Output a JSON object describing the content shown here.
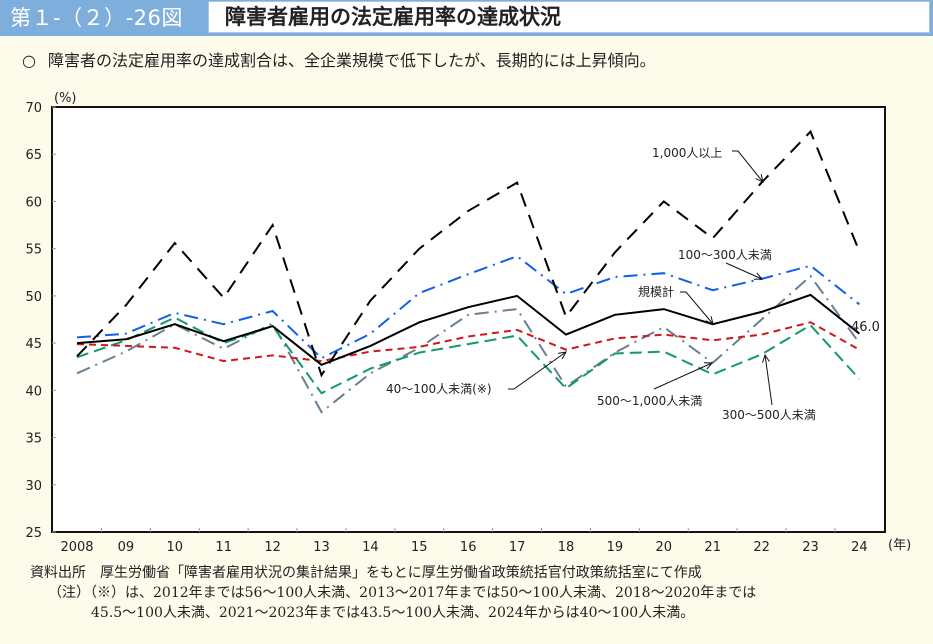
{
  "header": {
    "figure_number": "第１-（２）-26図",
    "title": "障害者雇用の法定雇用率の達成状況"
  },
  "lead": {
    "bullet": "○",
    "text": "障害者の法定雇用率の達成割合は、全企業規模で低下したが、長期的には上昇傾向。"
  },
  "chart_data": {
    "type": "line",
    "title": "障害者雇用の法定雇用率の達成状況",
    "ylabel": "(%)",
    "xlabel": "(年)",
    "ylim": [
      25,
      70
    ],
    "yticks": [
      25,
      30,
      35,
      40,
      45,
      50,
      55,
      60,
      65,
      70
    ],
    "categories": [
      "2008",
      "09",
      "10",
      "11",
      "12",
      "13",
      "14",
      "15",
      "16",
      "17",
      "18",
      "19",
      "20",
      "21",
      "22",
      "23",
      "24"
    ],
    "grid": false,
    "series": [
      {
        "name": "規模計",
        "color": "#000000",
        "style": "solid",
        "values": [
          45.0,
          45.4,
          47.0,
          45.2,
          46.8,
          42.7,
          44.7,
          47.2,
          48.8,
          50.0,
          45.9,
          48.0,
          48.6,
          47.0,
          48.3,
          50.1,
          46.0
        ]
      },
      {
        "name": "1,000人以上",
        "color": "#000000",
        "style": "longdash",
        "values": [
          43.6,
          49.0,
          55.6,
          49.8,
          57.5,
          41.6,
          49.5,
          55.0,
          59.0,
          62.0,
          47.8,
          54.6,
          60.0,
          56.1,
          62.0,
          67.4,
          54.7
        ]
      },
      {
        "name": "100～300人未満",
        "color": "#1060e8",
        "style": "dashdot",
        "values": [
          45.6,
          46.0,
          48.2,
          47.0,
          48.4,
          43.4,
          46.0,
          50.3,
          52.3,
          54.2,
          50.2,
          52.0,
          52.4,
          50.6,
          51.8,
          53.2,
          49.1
        ]
      },
      {
        "name": "40～100人未満(※)",
        "color": "#d01818",
        "style": "shortdash",
        "values": [
          44.9,
          44.7,
          44.5,
          43.1,
          43.7,
          43.1,
          44.1,
          44.6,
          45.7,
          46.4,
          44.3,
          45.5,
          45.9,
          45.3,
          45.9,
          47.2,
          44.3
        ]
      },
      {
        "name": "300～500人未満",
        "color": "#13996a",
        "style": "dash",
        "values": [
          43.5,
          45.3,
          47.7,
          45.0,
          46.8,
          39.7,
          42.3,
          44.0,
          44.9,
          45.8,
          40.2,
          43.9,
          44.1,
          41.7,
          43.8,
          46.9,
          41.2
        ]
      },
      {
        "name": "500～1,000人未満",
        "color": "#6a7f92",
        "style": "dashdot",
        "values": [
          41.8,
          44.1,
          47.0,
          44.4,
          47.1,
          37.7,
          41.8,
          44.5,
          48.0,
          48.6,
          40.4,
          44.0,
          46.7,
          42.9,
          47.5,
          52.1,
          45.0
        ]
      }
    ],
    "annotations": [
      {
        "text": "1,000人以上",
        "series": "1,000人以上",
        "points_to": "22"
      },
      {
        "text": "100～300人未満",
        "series": "100～300人未満",
        "points_to": "22"
      },
      {
        "text": "規模計",
        "series": "規模計",
        "points_to": "21"
      },
      {
        "text": "40～100人未満(※)",
        "series": "40～100人未満(※)",
        "points_to": "18"
      },
      {
        "text": "500～1,000人未満",
        "series": "500～1,000人未満",
        "points_to": "21"
      },
      {
        "text": "300～500人未満",
        "series": "300～500人未満",
        "points_to": "22"
      },
      {
        "text": "46.0",
        "series": "規模計",
        "points_to": "24"
      }
    ]
  },
  "notes": {
    "source": "資料出所　厚生労働省「障害者雇用状況の集計結果」をもとに厚生労働省政策統括官付政策統括室にて作成",
    "note_line1": "（注）（※）は、2012年までは56～100人未満、2013～2017年までは50～100人未満、2018～2020年までは",
    "note_line2": "45.5～100人未満、2021～2023年までは43.5～100人未満、2024年からは40～100人未満。"
  }
}
